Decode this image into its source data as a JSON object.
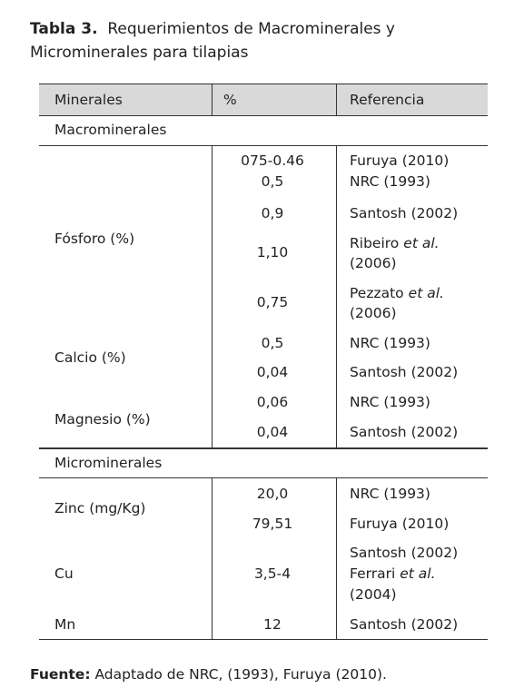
{
  "title": {
    "label": "Tabla 3.",
    "line1": "Requerimientos de Macrominerales y",
    "line2": "Microminerales para tilapias"
  },
  "table": {
    "headers": [
      "Minerales",
      "%",
      "Referencia"
    ],
    "sections": [
      {
        "name": "Macrominerales",
        "groups": [
          {
            "mineral": "Fósforo (%)",
            "rows": [
              {
                "value": "075-0.46",
                "references": [
                  {
                    "name": "Furuya",
                    "year": "(2010)"
                  }
                ]
              },
              {
                "value": "0,5",
                "references": [
                  {
                    "name": "NRC",
                    "year": "(1993)"
                  }
                ]
              },
              {
                "value": "0,9",
                "references": [
                  {
                    "name": "Santosh",
                    "year": "(2002)"
                  }
                ]
              },
              {
                "value": "1,10",
                "references": [
                  {
                    "name": "Ribeiro",
                    "italic": "et al.",
                    "year": "(2006)"
                  }
                ]
              },
              {
                "value": "0,75",
                "references": [
                  {
                    "name": "Pezzato",
                    "italic": "et al.",
                    "year": "(2006)"
                  }
                ]
              }
            ]
          },
          {
            "mineral": "Calcio (%)",
            "rows": [
              {
                "value": "0,5",
                "references": [
                  {
                    "name": "NRC",
                    "year": "(1993)"
                  }
                ]
              },
              {
                "value": "0,04",
                "references": [
                  {
                    "name": "Santosh",
                    "year": "(2002)"
                  }
                ]
              }
            ]
          },
          {
            "mineral": "Magnesio (%)",
            "rows": [
              {
                "value": "0,06",
                "references": [
                  {
                    "name": "NRC",
                    "year": "(1993)"
                  }
                ]
              },
              {
                "value": "0,04",
                "references": [
                  {
                    "name": "Santosh",
                    "year": "(2002)"
                  }
                ]
              }
            ]
          }
        ]
      },
      {
        "name": "Microminerales",
        "groups": [
          {
            "mineral": "Zinc (mg/Kg)",
            "rows": [
              {
                "value": "20,0",
                "references": [
                  {
                    "name": "NRC",
                    "year": "(1993)"
                  }
                ]
              },
              {
                "value": "79,51",
                "references": [
                  {
                    "name": "Furuya",
                    "year": "(2010)"
                  }
                ]
              }
            ]
          },
          {
            "mineral": "Cu",
            "rows": [
              {
                "value": "3,5-4",
                "references": [
                  {
                    "name": "Santosh",
                    "year": "(2002)"
                  },
                  {
                    "name": "Ferrari",
                    "italic": "et al.",
                    "year": "(2004)"
                  }
                ]
              }
            ]
          },
          {
            "mineral": "Mn",
            "rows": [
              {
                "value": "12",
                "references": [
                  {
                    "name": "Santosh",
                    "year": "(2002)"
                  }
                ]
              }
            ]
          }
        ]
      }
    ]
  },
  "footer": {
    "label": "Fuente:",
    "text": "Adaptado de NRC, (1993), Furuya (2010)."
  }
}
